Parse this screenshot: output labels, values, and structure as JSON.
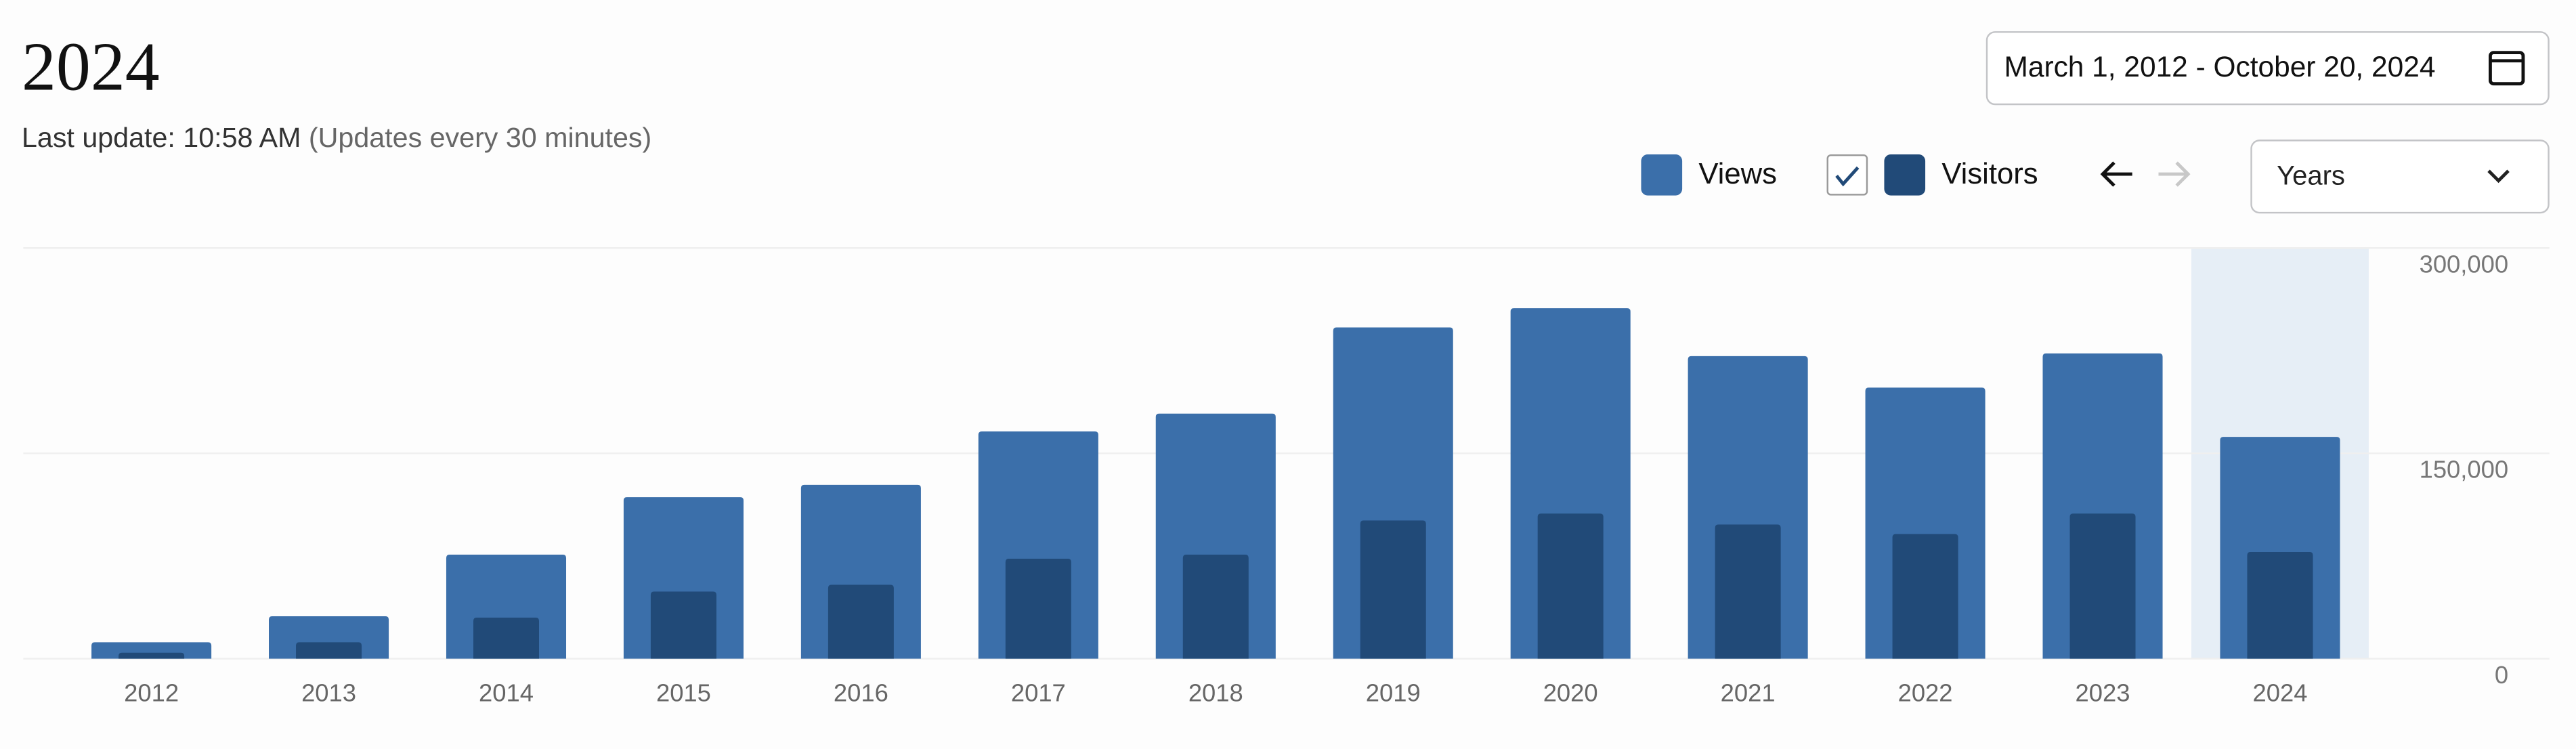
{
  "header": {
    "title": "2024",
    "last_update": "Last update: 10:58 AM",
    "update_note": "(Updates every 30 minutes)",
    "date_range": "March 1, 2012 - October 20, 2024",
    "period": "Years"
  },
  "chart_data": {
    "type": "bar",
    "categories": [
      "2012",
      "2013",
      "2014",
      "2015",
      "2016",
      "2017",
      "2018",
      "2019",
      "2020",
      "2021",
      "2022",
      "2023",
      "2024"
    ],
    "series": [
      {
        "name": "Views",
        "color": "#3b6faa",
        "values": [
          12000,
          31000,
          76000,
          118000,
          127000,
          166000,
          179000,
          242000,
          256000,
          221000,
          198000,
          223000,
          162000
        ]
      },
      {
        "name": "Visitors",
        "color": "#214a78",
        "values": [
          2000,
          12000,
          30000,
          49000,
          54000,
          73000,
          76000,
          101000,
          106000,
          98000,
          91000,
          106000,
          78000
        ]
      }
    ],
    "ylim": [
      0,
      300000
    ],
    "yticks": [
      0,
      {
        "value": 150000,
        "label": "150,000"
      },
      {
        "value": 300000,
        "label": "300,000"
      }
    ],
    "grid": true,
    "highlight": "2024"
  }
}
